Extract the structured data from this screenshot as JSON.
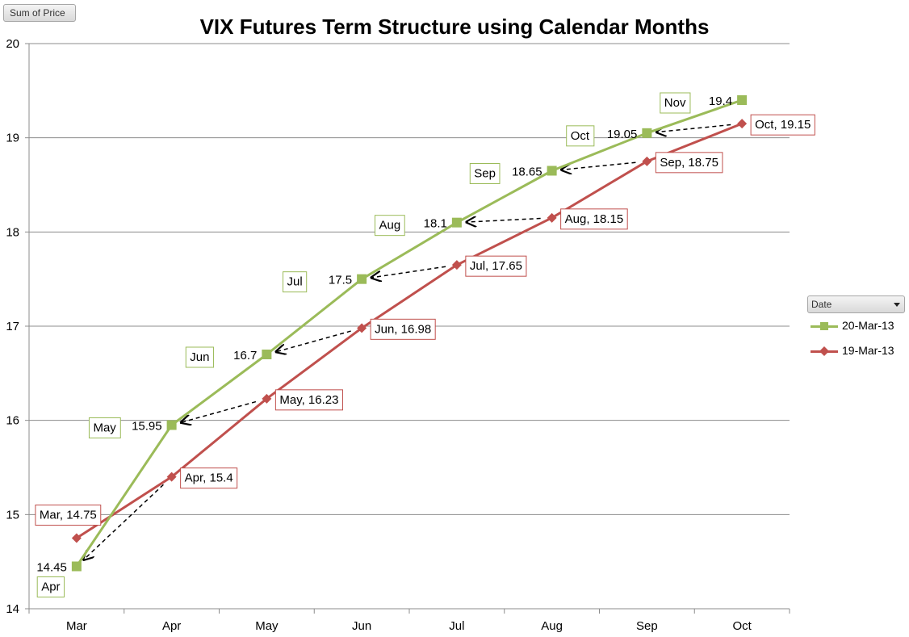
{
  "field_button": "Sum of Price",
  "legend_dropdown": "Date",
  "chart_data": {
    "type": "line",
    "title": "VIX Futures Term Structure using Calendar Months",
    "categories": [
      "Mar",
      "Apr",
      "May",
      "Jun",
      "Jul",
      "Aug",
      "Sep",
      "Oct"
    ],
    "ylim": [
      14,
      20
    ],
    "yticks": [
      14,
      15,
      16,
      17,
      18,
      19,
      20
    ],
    "grid": true,
    "legend_position": "right",
    "series": [
      {
        "name": "20-Mar-13",
        "color": "#9bbb59",
        "marker": "square",
        "values": [
          14.45,
          15.95,
          16.7,
          17.5,
          18.1,
          18.65,
          19.05,
          19.4
        ],
        "value_labels": [
          "14.45",
          "15.95",
          "16.7",
          "17.5",
          "18.1",
          "18.65",
          "19.05",
          "19.4"
        ],
        "month_labels": [
          "Apr",
          "May",
          "Jun",
          "Jul",
          "Aug",
          "Sep",
          "Oct",
          "Nov"
        ]
      },
      {
        "name": "19-Mar-13",
        "color": "#c0504d",
        "marker": "diamond",
        "values": [
          14.75,
          15.4,
          16.23,
          16.98,
          17.65,
          18.15,
          18.75,
          19.15
        ],
        "point_labels": [
          "Mar, 14.75",
          "Apr, 15.4",
          "May, 16.23",
          "Jun, 16.98",
          "Jul, 17.65",
          "Aug, 18.15",
          "Sep, 18.75",
          "Oct, 19.15"
        ]
      }
    ]
  }
}
